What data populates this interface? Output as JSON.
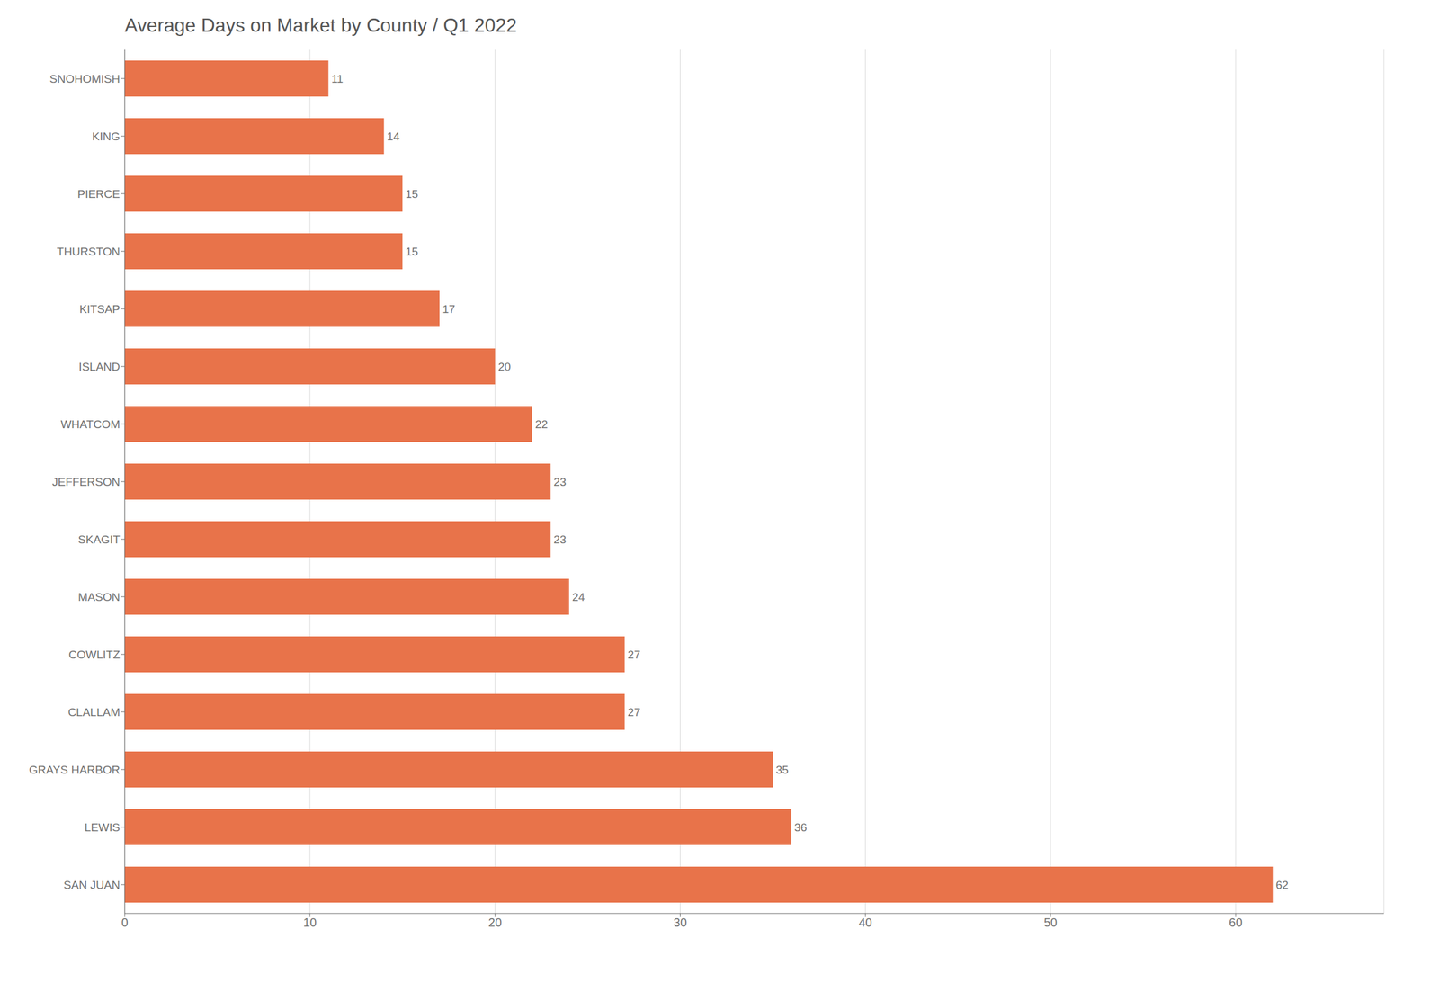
{
  "chart_data": {
    "type": "bar",
    "orientation": "horizontal",
    "title": "Average Days on Market by County   /   Q1 2022",
    "categories": [
      "SNOHOMISH",
      "KING",
      "PIERCE",
      "THURSTON",
      "KITSAP",
      "ISLAND",
      "WHATCOM",
      "JEFFERSON",
      "SKAGIT",
      "MASON",
      "COWLITZ",
      "CLALLAM",
      "GRAYS HARBOR",
      "LEWIS",
      "SAN JUAN"
    ],
    "values": [
      11,
      14,
      15,
      15,
      17,
      20,
      22,
      23,
      23,
      24,
      27,
      27,
      35,
      36,
      62
    ],
    "color": "#E8734A",
    "xlim": [
      0,
      68
    ],
    "xticks": [
      0,
      10,
      20,
      30,
      40,
      50,
      60
    ],
    "grid": true,
    "data_labels": true
  }
}
